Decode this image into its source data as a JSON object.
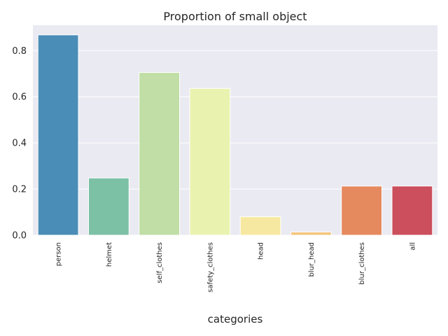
{
  "chart_data": {
    "type": "bar",
    "title": "Proportion of small object",
    "xlabel": "categories",
    "ylabel": "",
    "categories": [
      "person",
      "helmet",
      "self_clothes",
      "safety_clothes",
      "head",
      "blur_head",
      "blur_clothes",
      "all"
    ],
    "values": [
      0.868,
      0.248,
      0.705,
      0.636,
      0.08,
      0.014,
      0.213,
      0.213
    ],
    "colors": [
      "#4a8db6",
      "#7cc0a5",
      "#c0dea6",
      "#eaf2b0",
      "#f7e8a1",
      "#f4c57e",
      "#e58a5e",
      "#cb4f5c"
    ],
    "ylim": [
      0,
      0.91
    ],
    "yticks": [
      0.0,
      0.2,
      0.4,
      0.6,
      0.8
    ],
    "grid": true,
    "background_color": "#eaeaf2",
    "grid_color": "#ffffff"
  }
}
